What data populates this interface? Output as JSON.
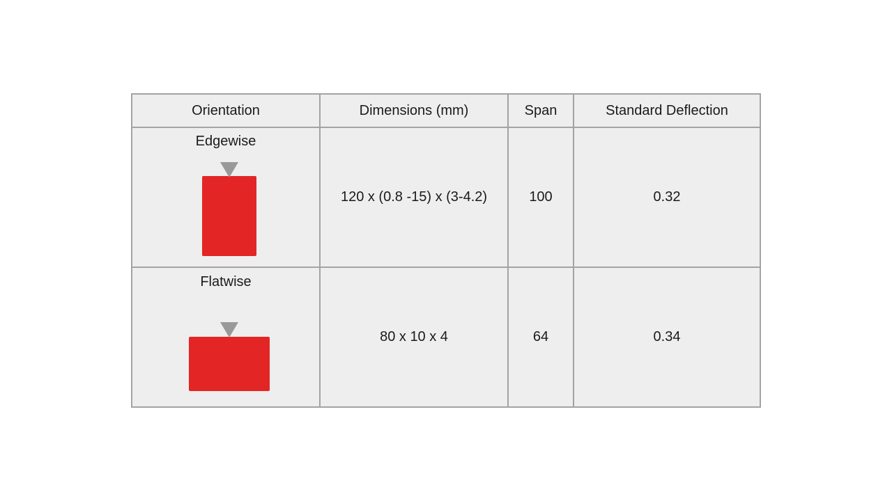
{
  "colors": {
    "specimen": "#e32526",
    "indenter": "#999999",
    "grid": "#a3a3a3",
    "cell_background": "#eeeeee"
  },
  "table": {
    "headers": [
      "Orientation",
      "Dimensions (mm)",
      "Span",
      "Standard Deflection"
    ],
    "rows": [
      {
        "orientation": "Edgewise",
        "specimen_icon": "tall-rectangle-with-indenter",
        "dimensions": "120 x (0.8 -15) x (3-4.2)",
        "span": "100",
        "standard_deflection": "0.32"
      },
      {
        "orientation": "Flatwise",
        "specimen_icon": "wide-rectangle-with-indenter",
        "dimensions": "80 x 10 x 4",
        "span": "64",
        "standard_deflection": "0.34"
      }
    ]
  }
}
